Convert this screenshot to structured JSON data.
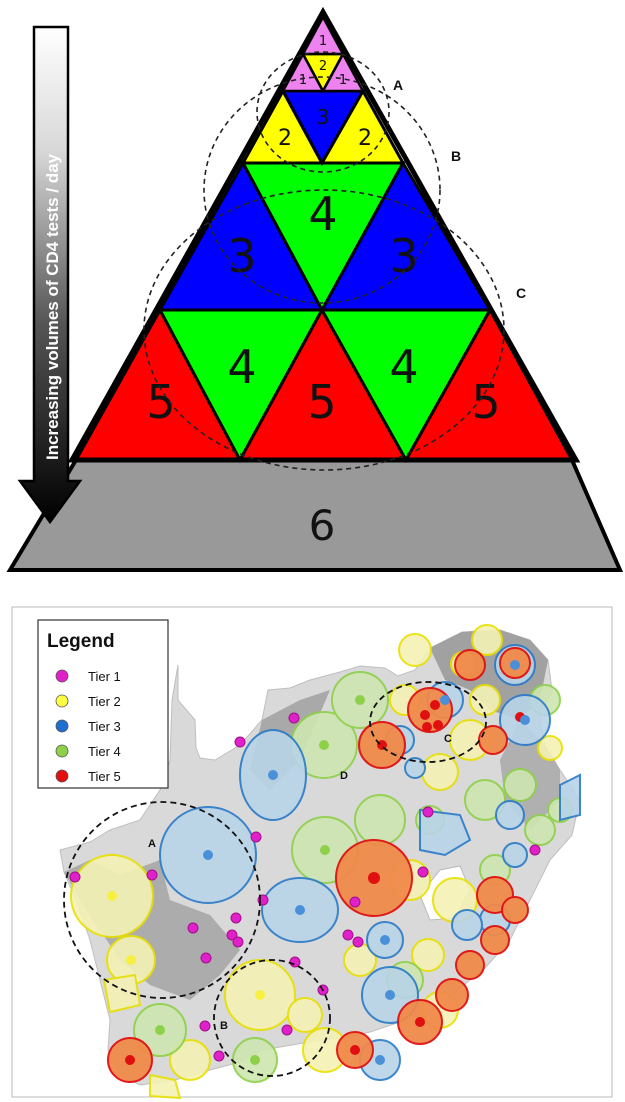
{
  "pyramid": {
    "arrow_label": "Increasing volumes of  CD4 tests / day",
    "tiers": {
      "t1_top": "1",
      "t1_left": "1",
      "t2_center": "2",
      "t1_right": "1",
      "t2_left": "2",
      "t3_center": "3",
      "t2_right": "2",
      "t3_left": "3",
      "t4_center": "4",
      "t3_right": "3",
      "t5_left": "5",
      "t4_left": "4",
      "t5_center": "5",
      "t4_right": "4",
      "t5_right": "5",
      "t6_base": "6"
    },
    "circle_labels": {
      "a": "A",
      "b": "B",
      "c": "C"
    },
    "colors": {
      "tier1": "#ee82ee",
      "tier2": "#ffff00",
      "tier3": "#0000ff",
      "tier4": "#00ff00",
      "tier5": "#ff0000",
      "tier6": "#999999"
    }
  },
  "map": {
    "legend": {
      "title": "Legend",
      "items": [
        {
          "label": "Tier 1",
          "color": "#e020c8"
        },
        {
          "label": "Tier 2",
          "color": "#ffff44"
        },
        {
          "label": "Tier 3",
          "color": "#1f6fd0"
        },
        {
          "label": "Tier 4",
          "color": "#8ed04a"
        },
        {
          "label": "Tier 5",
          "color": "#e01010"
        }
      ]
    },
    "cluster_labels": {
      "a": "A",
      "b": "B",
      "c": "C",
      "d": "D"
    }
  }
}
